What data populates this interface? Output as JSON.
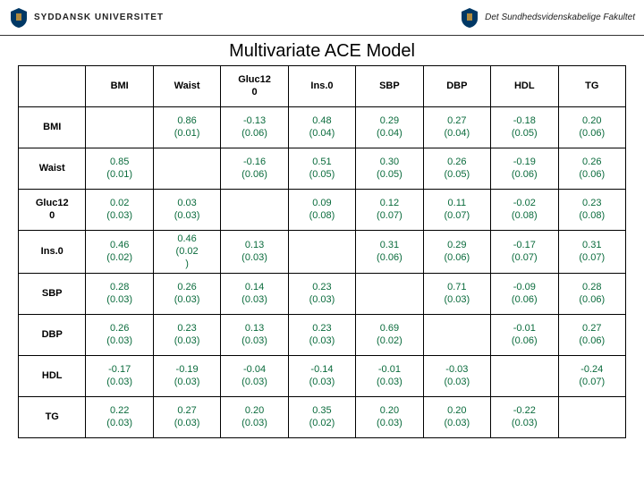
{
  "header": {
    "left_text": "SYDDANSK UNIVERSITET",
    "right_text": "Det Sundhedsvidenskabelige Fakultet"
  },
  "title": "Multivariate ACE Model",
  "table": {
    "columns": [
      "BMI",
      "Waist",
      "Gluc12\n0",
      "Ins.0",
      "SBP",
      "DBP",
      "HDL",
      "TG"
    ],
    "rows": [
      {
        "head": "BMI",
        "cells": [
          "",
          "0.86\n(0.01)",
          "-0.13\n(0.06)",
          "0.48\n(0.04)",
          "0.29\n(0.04)",
          "0.27\n(0.04)",
          "-0.18\n(0.05)",
          "0.20\n(0.06)"
        ]
      },
      {
        "head": "Waist",
        "cells": [
          "0.85\n(0.01)",
          "",
          "-0.16\n(0.06)",
          "0.51\n(0.05)",
          "0.30\n(0.05)",
          "0.26\n(0.05)",
          "-0.19\n(0.06)",
          "0.26\n(0.06)"
        ]
      },
      {
        "head": "Gluc12\n0",
        "cells": [
          "0.02\n(0.03)",
          "0.03\n(0.03)",
          "",
          "0.09\n(0.08)",
          "0.12\n(0.07)",
          "0.11\n(0.07)",
          "-0.02\n(0.08)",
          "0.23\n(0.08)"
        ]
      },
      {
        "head": "Ins.0",
        "cells": [
          "0.46\n(0.02)",
          "0.46\n(0.02\n)",
          "0.13\n(0.03)",
          "",
          "0.31\n(0.06)",
          "0.29\n(0.06)",
          "-0.17\n(0.07)",
          "0.31\n(0.07)"
        ]
      },
      {
        "head": "SBP",
        "cells": [
          "0.28\n(0.03)",
          "0.26\n(0.03)",
          "0.14\n(0.03)",
          "0.23\n(0.03)",
          "",
          "0.71\n(0.03)",
          "-0.09\n(0.06)",
          "0.28\n(0.06)"
        ]
      },
      {
        "head": "DBP",
        "cells": [
          "0.26\n(0.03)",
          "0.23\n(0.03)",
          "0.13\n(0.03)",
          "0.23\n(0.03)",
          "0.69\n(0.02)",
          "",
          "-0.01\n(0.06)",
          "0.27\n(0.06)"
        ]
      },
      {
        "head": "HDL",
        "cells": [
          "-0.17\n(0.03)",
          "-0.19\n(0.03)",
          "-0.04\n(0.03)",
          "-0.14\n(0.03)",
          "-0.01\n(0.03)",
          "-0.03\n(0.03)",
          "",
          "-0.24\n(0.07)"
        ]
      },
      {
        "head": "TG",
        "cells": [
          "0.22\n(0.03)",
          "0.27\n(0.03)",
          "0.20\n(0.03)",
          "0.35\n(0.02)",
          "0.20\n(0.03)",
          "0.20\n(0.03)",
          "-0.22\n(0.03)",
          ""
        ]
      }
    ],
    "upper_color": "#0a6b3c",
    "lower_color": "#0a6b3c",
    "border_color": "#000000",
    "background_color": "#ffffff",
    "font_size": 11
  }
}
